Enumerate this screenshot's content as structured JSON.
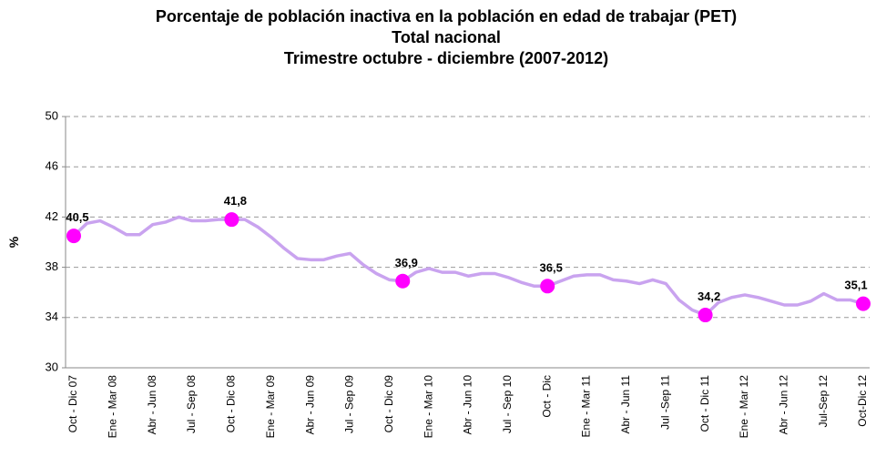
{
  "chart_data": {
    "type": "line",
    "title": [
      "Porcentaje de población inactiva en la población en edad de trabajar (PET)",
      "Total nacional",
      "Trimestre octubre - diciembre (2007-2012)"
    ],
    "y_label": "%",
    "categories": [
      "Oct - Dic 07",
      null,
      null,
      "Ene - Mar 08",
      null,
      null,
      "Abr - Jun 08",
      null,
      null,
      "Jul - Sep 08",
      null,
      null,
      "Oct - Dic 08",
      null,
      null,
      "Ene - Mar 09",
      null,
      null,
      "Abr - Jun 09",
      null,
      null,
      "Jul - Sep 09",
      null,
      null,
      "Oct - Dic 09",
      null,
      null,
      "Ene - Mar 10",
      null,
      null,
      "Abr - Jun 10",
      null,
      null,
      "Jul - Sep 10",
      null,
      null,
      "Oct - Dic",
      null,
      null,
      "Ene - Mar 11",
      null,
      null,
      "Abr - Jun 11",
      null,
      null,
      "Jul -Sep 11",
      null,
      null,
      "Oct - Dic 11",
      null,
      null,
      "Ene - Mar 12",
      null,
      null,
      "Abr - Jun 12",
      null,
      null,
      "Jul-Sep 12",
      null,
      null,
      "Oct-Dic 12"
    ],
    "values": [
      40.5,
      41.5,
      41.7,
      41.2,
      40.6,
      40.6,
      41.4,
      41.6,
      42.0,
      41.7,
      41.7,
      41.8,
      41.8,
      41.8,
      41.2,
      40.4,
      39.5,
      38.7,
      38.6,
      38.6,
      38.9,
      39.1,
      38.2,
      37.5,
      37.0,
      36.9,
      37.6,
      37.9,
      37.6,
      37.6,
      37.3,
      37.5,
      37.5,
      37.2,
      36.8,
      36.5,
      36.5,
      36.9,
      37.3,
      37.4,
      37.4,
      37.0,
      36.9,
      36.7,
      37.0,
      36.7,
      35.4,
      34.6,
      34.2,
      35.2,
      35.6,
      35.8,
      35.6,
      35.3,
      35.0,
      35.0,
      35.3,
      35.9,
      35.4,
      35.4,
      35.1
    ],
    "value_labels": [
      "40,5",
      null,
      null,
      null,
      null,
      null,
      null,
      null,
      null,
      null,
      null,
      null,
      "41,8",
      null,
      null,
      null,
      null,
      null,
      null,
      null,
      null,
      null,
      null,
      null,
      null,
      "36,9",
      null,
      null,
      null,
      null,
      null,
      null,
      null,
      null,
      null,
      null,
      "36,5",
      null,
      null,
      null,
      null,
      null,
      null,
      null,
      null,
      null,
      null,
      null,
      "34,2",
      null,
      null,
      null,
      null,
      null,
      null,
      null,
      null,
      null,
      null,
      null,
      "35,1"
    ],
    "line_color": "#c9a3ef",
    "marker_color": "#ff00ff",
    "ylim": [
      30,
      50
    ],
    "yticks": [
      30,
      34,
      38,
      42,
      46,
      50
    ],
    "grid": true
  }
}
